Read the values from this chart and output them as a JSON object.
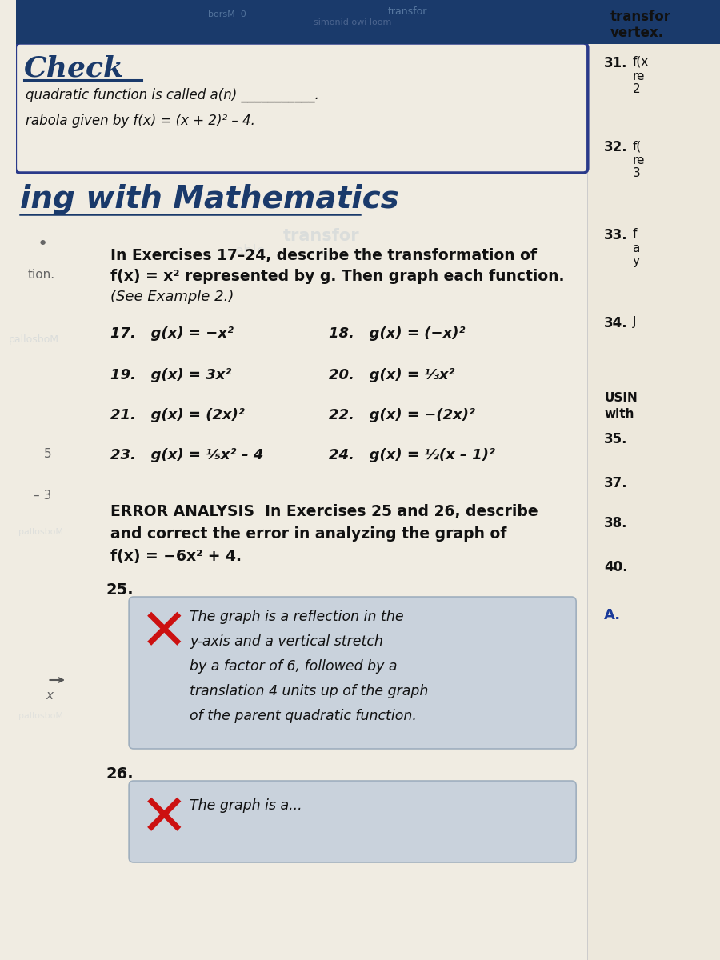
{
  "page_bg": "#f0ece2",
  "top_bar_color": "#1a3a6b",
  "check_title": "Check",
  "check_line1": "quadratic function is called a(n) ___________.",
  "check_line2": "rabola given by f(x) = (x + 2)² – 4.",
  "section_title": "ing with Mathematics",
  "exercises_intro1": "In Exercises 17–24, describe the transformation of",
  "exercises_intro2": "f(x) = x² represented by g. Then graph each function.",
  "exercises_intro3": "(See Example 2.)",
  "ex17": "17.   g(x) = −x²",
  "ex18": "18.   g(x) = (−x)²",
  "ex19": "19.   g(x) = 3x²",
  "ex20": "20.   g(x) = ⅓x²",
  "ex21": "21.   g(x) = (2x)²",
  "ex22": "22.   g(x) = −(2x)²",
  "ex23": "23.   g(x) = ⅕x² – 4",
  "ex24": "24.   g(x) = ½(x – 1)²",
  "error_line1": "ERROR ANALYSIS  In Exercises 25 and 26, describe",
  "error_line2": "and correct the error in analyzing the graph of",
  "error_line3": "f(x) = −6x² + 4.",
  "ex25_label": "25.",
  "ex25_box_lines": [
    "The graph is a reflection in the",
    "y-axis and a vertical stretch",
    "by a factor of 6, followed by a",
    "translation 4 units up of the graph",
    "of the parent quadratic function."
  ],
  "ex26_label": "26.",
  "ex26_box_line": "The graph is a...",
  "right_top_line1": "transfor",
  "right_top_line2": "vertex.",
  "right_items": [
    [
      70,
      "31.",
      "f(x"
    ],
    [
      88,
      "",
      "re"
    ],
    [
      104,
      "",
      "2"
    ],
    [
      175,
      "32.",
      "f("
    ],
    [
      193,
      "",
      "re"
    ],
    [
      209,
      "",
      "3"
    ],
    [
      285,
      "33.",
      "f"
    ],
    [
      303,
      "",
      "a"
    ],
    [
      319,
      "",
      "y"
    ],
    [
      395,
      "34.",
      "J"
    ],
    [
      490,
      "USIN",
      ""
    ],
    [
      510,
      "with",
      ""
    ],
    [
      540,
      "35.",
      ""
    ],
    [
      595,
      "37.",
      ""
    ],
    [
      645,
      "38.",
      ""
    ],
    [
      700,
      "40.",
      ""
    ],
    [
      760,
      "A.",
      ""
    ]
  ],
  "left_margin": [
    [
      395,
      "•"
    ],
    [
      450,
      "tion."
    ],
    [
      590,
      "5"
    ],
    [
      645,
      "– 3"
    ],
    [
      820,
      "→"
    ],
    [
      840,
      "x"
    ]
  ],
  "box_bg": "#c5d0dc",
  "box_edge": "#99aabb",
  "x_color": "#cc1111",
  "title_color": "#1a3a6b",
  "text_dark": "#111111",
  "text_gray": "#666666",
  "check_border": "#2a3a8a",
  "watermark_color": "#aabbcc"
}
